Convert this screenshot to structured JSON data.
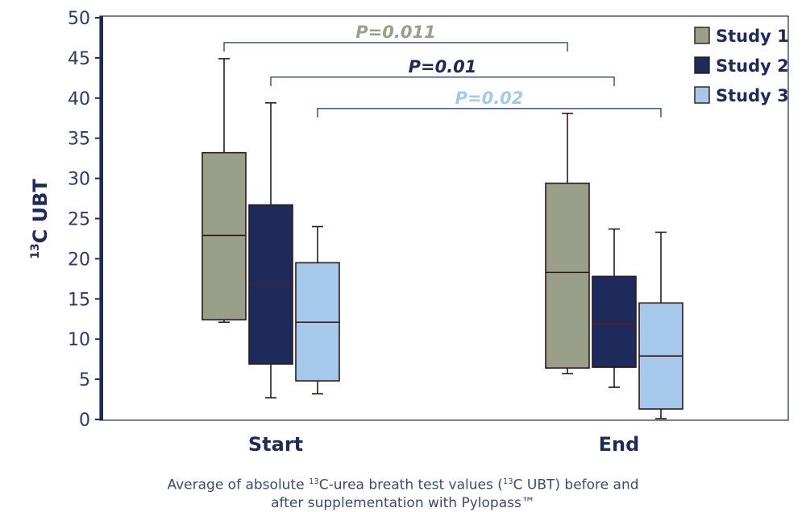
{
  "chart_data": {
    "type": "box",
    "ylabel": "13C UBT",
    "ylabel_prefix_superscript": "13",
    "ylabel_main": "C UBT",
    "ylim": [
      0,
      50
    ],
    "yticks": [
      "0",
      "5",
      "10",
      "15",
      "20",
      "25",
      "30",
      "35",
      "40",
      "45",
      "50"
    ],
    "categories": [
      "Start",
      "End"
    ],
    "legend_position": "top-right",
    "series": [
      {
        "name": "Study 1",
        "color": "#9a9f8a",
        "boxes": [
          {
            "min": 12.1,
            "q1": 12.4,
            "median": 22.9,
            "q3": 33.2,
            "max": 44.9
          },
          {
            "min": 5.7,
            "q1": 6.4,
            "median": 18.3,
            "q3": 29.4,
            "max": 38.1
          }
        ]
      },
      {
        "name": "Study 2",
        "color": "#1f2a5c",
        "boxes": [
          {
            "min": 2.7,
            "q1": 6.9,
            "median": 16.8,
            "q3": 26.7,
            "max": 39.4
          },
          {
            "min": 4.0,
            "q1": 6.5,
            "median": 11.9,
            "q3": 17.8,
            "max": 23.7
          }
        ]
      },
      {
        "name": "Study 3",
        "color": "#a6c8ea",
        "boxes": [
          {
            "min": 3.2,
            "q1": 4.8,
            "median": 12.1,
            "q3": 19.5,
            "max": 24.0
          },
          {
            "min": 0.1,
            "q1": 1.3,
            "median": 7.9,
            "q3": 14.5,
            "max": 23.3
          }
        ]
      }
    ],
    "annotations": [
      {
        "label": "P=0.011",
        "series": "Study 1",
        "y": 46.9,
        "color": "#9a9f8a"
      },
      {
        "label": "P=0.01",
        "series": "Study 2",
        "y": 42.6,
        "color": "#1f2a5c"
      },
      {
        "label": "P=0.02",
        "series": "Study 3",
        "y": 38.7,
        "color": "#a6c8ea"
      }
    ]
  },
  "caption": {
    "line1_a": "Average of absolute ",
    "line1_sup1": "13",
    "line1_b": "C-urea breath test values (",
    "line1_sup2": "13",
    "line1_c": "C UBT) before and",
    "line2": "after supplementation with Pylopass™"
  }
}
